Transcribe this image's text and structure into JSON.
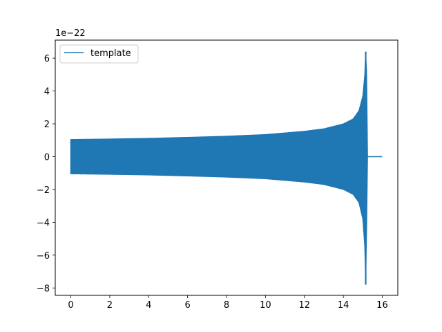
{
  "chart_data": {
    "type": "line",
    "title": "",
    "xlabel": "",
    "ylabel": "",
    "y_offset_label": "1e−22",
    "xlim": [
      -0.8,
      16.8
    ],
    "ylim": [
      -8.45,
      7.1
    ],
    "x_ticks": [
      0,
      2,
      4,
      6,
      8,
      10,
      12,
      14,
      16
    ],
    "x_tick_labels": [
      "0",
      "2",
      "4",
      "6",
      "8",
      "10",
      "12",
      "14",
      "16"
    ],
    "y_ticks": [
      -8,
      -6,
      -4,
      -2,
      0,
      2,
      4,
      6
    ],
    "y_tick_labels": [
      "−8",
      "−6",
      "−4",
      "−2",
      "0",
      "2",
      "4",
      "6"
    ],
    "grid": false,
    "legend": {
      "placement": "top-left",
      "entries": [
        "template"
      ]
    },
    "series": [
      {
        "name": "template",
        "color": "#1f77b4",
        "description_values": {
          "x": [
            0,
            2,
            4,
            6,
            8,
            10,
            12,
            13,
            14,
            14.5,
            14.8,
            15.0,
            15.1,
            15.15,
            15.2,
            15.25,
            15.3,
            16.0
          ],
          "y_upper": [
            1.05,
            1.08,
            1.12,
            1.18,
            1.25,
            1.35,
            1.55,
            1.7,
            2.0,
            2.3,
            2.8,
            3.7,
            5.0,
            6.4,
            5.2,
            0,
            0,
            0
          ],
          "y_lower": [
            -1.05,
            -1.08,
            -1.12,
            -1.18,
            -1.25,
            -1.35,
            -1.55,
            -1.7,
            -2.0,
            -2.3,
            -2.8,
            -3.8,
            -5.5,
            -7.8,
            -4.5,
            0,
            0,
            0
          ]
        }
      }
    ]
  }
}
